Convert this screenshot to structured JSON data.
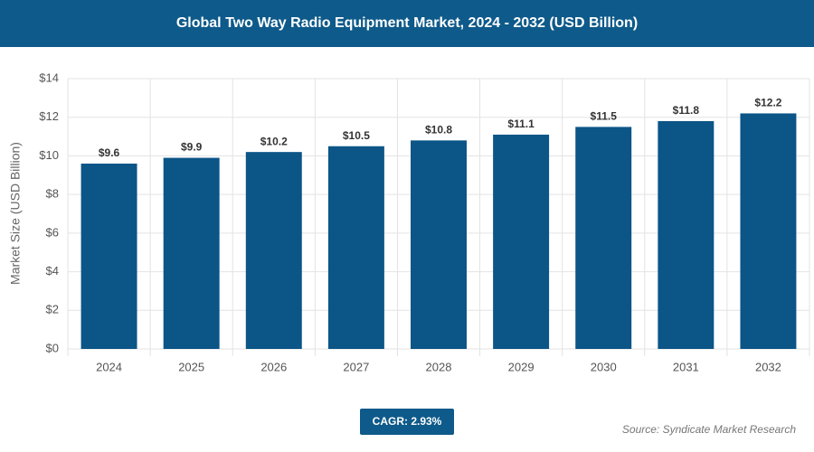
{
  "chart_data": {
    "type": "bar",
    "title": "Global Two Way Radio Equipment Market, 2024 - 2032 (USD Billion)",
    "y_label": "Market Size (USD Billion)",
    "categories": [
      "2024",
      "2025",
      "2026",
      "2027",
      "2028",
      "2029",
      "2030",
      "2031",
      "2032"
    ],
    "values": [
      9.6,
      9.9,
      10.2,
      10.5,
      10.8,
      11.1,
      11.5,
      11.8,
      12.2
    ],
    "value_labels": [
      "$9.6",
      "$9.9",
      "$10.2",
      "$10.5",
      "$10.8",
      "$11.1",
      "$11.5",
      "$11.8",
      "$12.2"
    ],
    "color": "#0b5587",
    "ylim": [
      0,
      14
    ],
    "yticks": [
      {
        "value": 0,
        "label": "$0"
      },
      {
        "value": 2,
        "label": "$2"
      },
      {
        "value": 4,
        "label": "$4"
      },
      {
        "value": 6,
        "label": "$6"
      },
      {
        "value": 8,
        "label": "$8"
      },
      {
        "value": 10,
        "label": "$10"
      },
      {
        "value": 12,
        "label": "$12"
      },
      {
        "value": 14,
        "label": "$14"
      }
    ],
    "grid": true,
    "cagr": "CAGR: 2.93%",
    "source": "Source: Syndicate Market Research"
  }
}
